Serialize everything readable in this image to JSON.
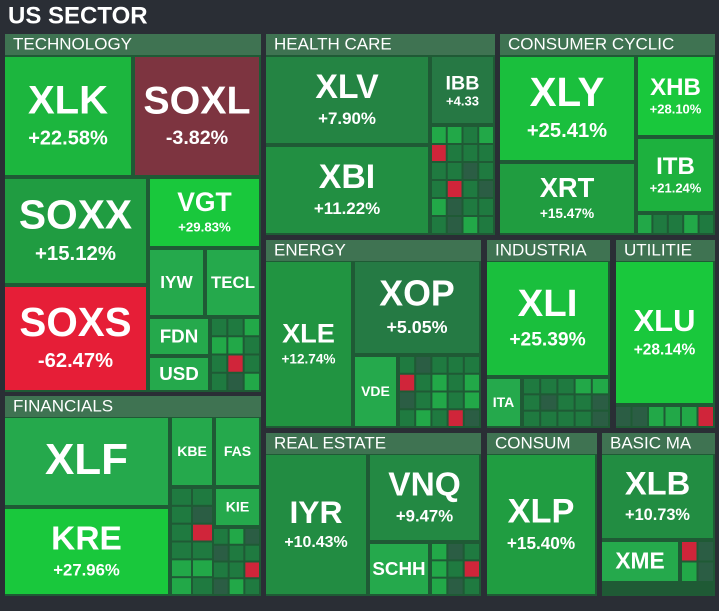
{
  "chart_data": {
    "type": "treemap",
    "title": "US SECTOR",
    "groups": [
      {
        "name": "TECHNOLOGY",
        "labels": [
          "XLK",
          "SOXL",
          "SOXX",
          "VGT",
          "IYW",
          "TECL",
          "SOXS",
          "FDN",
          "USD"
        ],
        "values": [
          22.58,
          -3.82,
          15.12,
          29.83,
          null,
          null,
          -62.47,
          null,
          null
        ],
        "value_labels": [
          "+22.58%",
          "-3.82%",
          "+15.12%",
          "+29.83%",
          null,
          null,
          "-62.47%",
          null,
          null
        ]
      },
      {
        "name": "HEALTH CARE",
        "labels": [
          "XLV",
          "IBB",
          "XBI"
        ],
        "values": [
          7.9,
          4.33,
          11.22
        ],
        "value_labels": [
          "+7.90%",
          "+4.33",
          "+11.22%"
        ]
      },
      {
        "name": "CONSUMER CYCLIC",
        "labels": [
          "XLY",
          "XHB",
          "XRT",
          "ITB"
        ],
        "values": [
          25.41,
          28.1,
          15.47,
          21.24
        ],
        "value_labels": [
          "+25.41%",
          "+28.10%",
          "+15.47%",
          "+21.24%"
        ]
      },
      {
        "name": "ENERGY",
        "labels": [
          "XLE",
          "XOP",
          "VDE"
        ],
        "values": [
          12.74,
          5.05,
          null
        ],
        "value_labels": [
          "+12.74%",
          "+5.05%",
          null
        ]
      },
      {
        "name": "INDUSTRIA",
        "labels": [
          "XLI",
          "ITA"
        ],
        "values": [
          25.39,
          null
        ],
        "value_labels": [
          "+25.39%",
          null
        ]
      },
      {
        "name": "UTILITIE",
        "labels": [
          "XLU"
        ],
        "values": [
          28.14
        ],
        "value_labels": [
          "+28.14%"
        ]
      },
      {
        "name": "FINANCIALS",
        "labels": [
          "XLF",
          "KRE",
          "KBE",
          "FAS",
          "KIE"
        ],
        "values": [
          null,
          27.96,
          null,
          null,
          null
        ],
        "value_labels": [
          null,
          "+27.96%",
          null,
          null,
          null
        ]
      },
      {
        "name": "REAL ESTATE",
        "labels": [
          "IYR",
          "VNQ",
          "SCHH"
        ],
        "values": [
          10.43,
          9.47,
          null
        ],
        "value_labels": [
          "+10.43%",
          "+9.47%",
          null
        ]
      },
      {
        "name": "CONSUM",
        "labels": [
          "XLP"
        ],
        "values": [
          15.4
        ],
        "value_labels": [
          "+15.40%"
        ]
      },
      {
        "name": "BASIC MA",
        "labels": [
          "XLB",
          "XME"
        ],
        "values": [
          10.73,
          null
        ],
        "value_labels": [
          "+10.73%",
          null
        ]
      }
    ]
  }
}
